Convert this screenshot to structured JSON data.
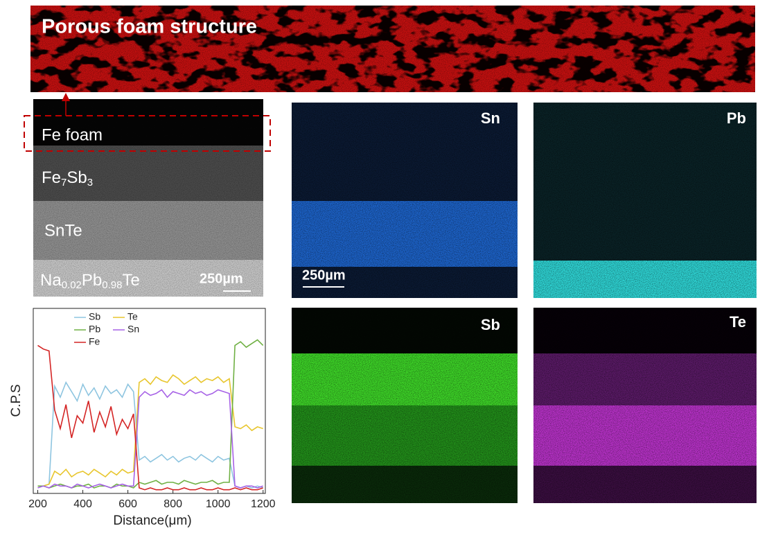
{
  "banner": {
    "label": "Porous foam structure"
  },
  "sem": {
    "labels": {
      "foam": "Fe foam",
      "fe7sb3": [
        "Fe",
        "7",
        "Sb",
        "3"
      ],
      "snte": "SnTe",
      "napbte": [
        "Na",
        "0.02",
        "Pb",
        "0.98",
        "Te"
      ]
    },
    "scale_bar": "250µm"
  },
  "maps": [
    {
      "element": "Sn",
      "scale_bar": "250µm"
    },
    {
      "element": "Pb"
    },
    {
      "element": "Sb"
    },
    {
      "element": "Te"
    }
  ],
  "chart_data": {
    "type": "line",
    "xlabel": "Distance(μm)",
    "ylabel": "C.P.S",
    "xlim": [
      180,
      1210
    ],
    "xticks": [
      200,
      400,
      600,
      800,
      1000,
      1200
    ],
    "ylim": [
      0,
      100
    ],
    "x": [
      200,
      225,
      250,
      275,
      300,
      325,
      350,
      375,
      400,
      425,
      450,
      475,
      500,
      525,
      550,
      575,
      600,
      625,
      650,
      675,
      700,
      725,
      750,
      775,
      800,
      825,
      850,
      875,
      900,
      925,
      950,
      975,
      1000,
      1025,
      1050,
      1075,
      1100,
      1125,
      1150,
      1175,
      1200
    ],
    "series": [
      {
        "name": "Sb",
        "color": "#8ec5e0",
        "values": [
          4,
          4,
          5,
          58,
          52,
          60,
          55,
          50,
          59,
          53,
          57,
          51,
          58,
          54,
          56,
          52,
          59,
          55,
          18,
          20,
          17,
          19,
          21,
          18,
          20,
          17,
          19,
          20,
          18,
          21,
          19,
          17,
          20,
          18,
          19,
          4,
          3,
          4,
          3,
          4,
          3
        ]
      },
      {
        "name": "Te",
        "color": "#e8c62e",
        "values": [
          4,
          4,
          5,
          12,
          10,
          13,
          9,
          11,
          12,
          10,
          13,
          11,
          9,
          12,
          10,
          13,
          11,
          12,
          60,
          62,
          59,
          63,
          61,
          60,
          64,
          62,
          59,
          61,
          63,
          60,
          62,
          61,
          63,
          60,
          62,
          36,
          35,
          37,
          34,
          36,
          35
        ]
      },
      {
        "name": "Pb",
        "color": "#6fb043",
        "values": [
          4,
          4,
          3,
          4,
          5,
          4,
          3,
          4,
          4,
          5,
          3,
          4,
          4,
          3,
          5,
          4,
          4,
          3,
          6,
          5,
          6,
          7,
          5,
          6,
          6,
          5,
          7,
          6,
          5,
          6,
          6,
          7,
          5,
          6,
          6,
          80,
          82,
          79,
          81,
          83,
          80
        ]
      },
      {
        "name": "Sn",
        "color": "#a661e6",
        "values": [
          3,
          4,
          3,
          5,
          4,
          4,
          3,
          5,
          4,
          3,
          4,
          5,
          4,
          3,
          4,
          5,
          4,
          4,
          52,
          55,
          53,
          54,
          56,
          52,
          55,
          54,
          53,
          56,
          54,
          55,
          53,
          54,
          56,
          55,
          54,
          4,
          3,
          4,
          4,
          3,
          4
        ]
      },
      {
        "name": "Fe",
        "color": "#d42424",
        "values": [
          80,
          78,
          77,
          45,
          35,
          48,
          30,
          42,
          38,
          50,
          33,
          44,
          36,
          47,
          32,
          40,
          35,
          43,
          3,
          2,
          3,
          2,
          2,
          3,
          2,
          2,
          3,
          2,
          2,
          3,
          2,
          2,
          3,
          2,
          2,
          3,
          2,
          3,
          2,
          2,
          3
        ]
      }
    ]
  }
}
